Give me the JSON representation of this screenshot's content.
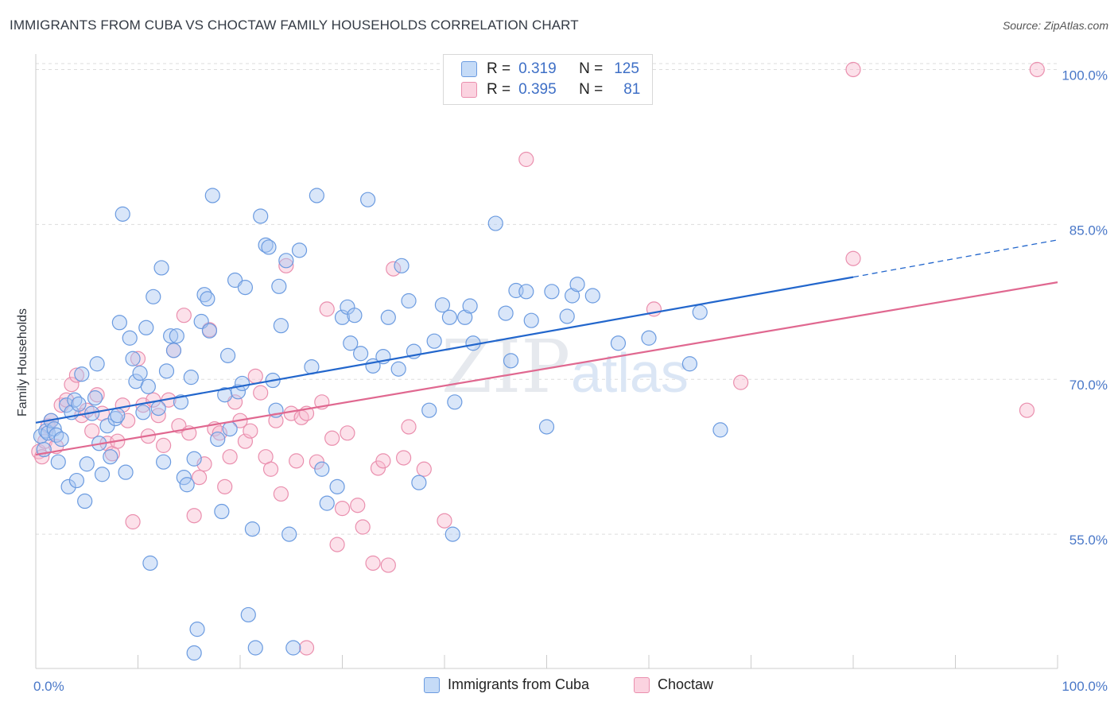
{
  "title": "IMMIGRANTS FROM CUBA VS CHOCTAW FAMILY HOUSEHOLDS CORRELATION CHART",
  "source": "Source: ZipAtlas.com",
  "colors": {
    "blue_fill": "#aac8f2",
    "blue_stroke": "#6b9be0",
    "blue_line": "#2266cc",
    "pink_fill": "#f8bcd0",
    "pink_stroke": "#ea8fae",
    "pink_line": "#e06890",
    "tick_text": "#4a78c8",
    "grid": "#dddddd",
    "watermark": "#e6e9ee"
  },
  "legend_top": {
    "rows": [
      {
        "series": "blue",
        "r_label": "R =",
        "r_value": "0.319",
        "n_label": "N =",
        "n_value": "125"
      },
      {
        "series": "pink",
        "r_label": "R =",
        "r_value": "0.395",
        "n_label": "N =",
        "n_value": "81"
      }
    ]
  },
  "legend_bottom": {
    "blue": "Immigrants from Cuba",
    "pink": "Choctaw"
  },
  "watermark": {
    "zip": "ZIP",
    "atlas": "atlas"
  },
  "chart_data": {
    "type": "scatter",
    "title": "IMMIGRANTS FROM CUBA VS CHOCTAW FAMILY HOUSEHOLDS CORRELATION CHART",
    "xlabel": "",
    "ylabel": "Family Households",
    "xlim": [
      0,
      100
    ],
    "ylim": [
      42,
      101.5
    ],
    "x_tick_labels": [
      {
        "value": 0,
        "label": "0.0%"
      },
      {
        "value": 100,
        "label": "100.0%"
      }
    ],
    "y_ticks": [
      {
        "value": 55,
        "label": "55.0%"
      },
      {
        "value": 70,
        "label": "70.0%"
      },
      {
        "value": 85,
        "label": "85.0%"
      },
      {
        "value": 100,
        "label": "100.0%"
      }
    ],
    "grid": true,
    "series": [
      {
        "name": "Immigrants from Cuba",
        "color_key": "blue",
        "R": 0.319,
        "N": 125,
        "trend": {
          "x0": 0,
          "y0": 65.8,
          "x1": 80,
          "y1": 79.9,
          "dashed_to_x": 100,
          "dashed_to_y": 83.5
        },
        "points": [
          [
            0.5,
            64.5
          ],
          [
            0.8,
            63.2
          ],
          [
            1.0,
            65.0
          ],
          [
            1.2,
            64.8
          ],
          [
            1.5,
            66.0
          ],
          [
            1.8,
            65.2
          ],
          [
            2.0,
            64.6
          ],
          [
            2.2,
            62.0
          ],
          [
            2.5,
            64.2
          ],
          [
            3.0,
            67.5
          ],
          [
            3.2,
            59.6
          ],
          [
            3.5,
            66.8
          ],
          [
            3.8,
            68.0
          ],
          [
            4.0,
            60.2
          ],
          [
            4.2,
            67.6
          ],
          [
            4.5,
            70.5
          ],
          [
            4.8,
            58.2
          ],
          [
            5.0,
            61.8
          ],
          [
            5.5,
            66.7
          ],
          [
            5.8,
            68.2
          ],
          [
            6.0,
            71.5
          ],
          [
            6.2,
            63.8
          ],
          [
            6.5,
            60.8
          ],
          [
            7.0,
            65.5
          ],
          [
            7.3,
            62.5
          ],
          [
            7.8,
            66.2
          ],
          [
            8.0,
            66.5
          ],
          [
            8.2,
            75.5
          ],
          [
            8.5,
            86.0
          ],
          [
            8.8,
            61.0
          ],
          [
            9.2,
            74.0
          ],
          [
            9.5,
            72.0
          ],
          [
            9.8,
            69.8
          ],
          [
            10.2,
            70.6
          ],
          [
            10.5,
            66.8
          ],
          [
            10.8,
            75.0
          ],
          [
            11.0,
            69.3
          ],
          [
            11.2,
            52.2
          ],
          [
            11.5,
            78.0
          ],
          [
            12.0,
            67.2
          ],
          [
            12.3,
            80.8
          ],
          [
            12.5,
            62.0
          ],
          [
            12.8,
            70.8
          ],
          [
            13.2,
            74.2
          ],
          [
            13.5,
            72.8
          ],
          [
            13.8,
            74.2
          ],
          [
            14.2,
            67.8
          ],
          [
            14.5,
            60.5
          ],
          [
            14.8,
            59.8
          ],
          [
            15.2,
            70.2
          ],
          [
            15.5,
            62.3
          ],
          [
            15.8,
            45.8
          ],
          [
            15.5,
            43.5
          ],
          [
            16.2,
            75.6
          ],
          [
            16.5,
            78.2
          ],
          [
            16.8,
            77.8
          ],
          [
            17.0,
            74.7
          ],
          [
            17.3,
            87.8
          ],
          [
            17.8,
            64.2
          ],
          [
            18.2,
            57.2
          ],
          [
            18.5,
            68.5
          ],
          [
            18.8,
            72.3
          ],
          [
            19.0,
            65.2
          ],
          [
            19.5,
            79.6
          ],
          [
            19.8,
            68.8
          ],
          [
            20.2,
            69.6
          ],
          [
            20.5,
            78.9
          ],
          [
            20.8,
            47.2
          ],
          [
            21.2,
            55.5
          ],
          [
            21.5,
            44.0
          ],
          [
            22.0,
            85.8
          ],
          [
            22.5,
            83.0
          ],
          [
            22.8,
            82.8
          ],
          [
            23.2,
            69.9
          ],
          [
            23.5,
            67.0
          ],
          [
            23.8,
            79.0
          ],
          [
            24.0,
            75.2
          ],
          [
            24.5,
            81.5
          ],
          [
            24.8,
            55.0
          ],
          [
            25.2,
            44.0
          ],
          [
            25.8,
            82.5
          ],
          [
            27.0,
            71.2
          ],
          [
            27.5,
            87.8
          ],
          [
            28.0,
            61.3
          ],
          [
            28.5,
            58.0
          ],
          [
            29.5,
            59.6
          ],
          [
            30.0,
            76.0
          ],
          [
            30.5,
            77.0
          ],
          [
            30.8,
            73.5
          ],
          [
            31.2,
            76.2
          ],
          [
            31.8,
            72.5
          ],
          [
            32.5,
            87.4
          ],
          [
            33.0,
            71.3
          ],
          [
            34.0,
            72.2
          ],
          [
            34.5,
            76.0
          ],
          [
            35.5,
            71.0
          ],
          [
            35.8,
            81.0
          ],
          [
            36.5,
            77.6
          ],
          [
            37.0,
            72.7
          ],
          [
            37.5,
            60.0
          ],
          [
            38.5,
            67.0
          ],
          [
            39.0,
            73.7
          ],
          [
            39.8,
            77.2
          ],
          [
            40.5,
            76.0
          ],
          [
            40.8,
            55.0
          ],
          [
            41.0,
            67.8
          ],
          [
            42.0,
            76.0
          ],
          [
            42.5,
            77.1
          ],
          [
            42.8,
            73.5
          ],
          [
            45.0,
            85.1
          ],
          [
            46.0,
            76.4
          ],
          [
            46.5,
            71.8
          ],
          [
            47.0,
            78.6
          ],
          [
            48.0,
            78.5
          ],
          [
            48.5,
            75.7
          ],
          [
            50.0,
            65.4
          ],
          [
            50.5,
            78.5
          ],
          [
            52.0,
            76.1
          ],
          [
            52.5,
            78.1
          ],
          [
            53.0,
            79.2
          ],
          [
            54.5,
            78.1
          ],
          [
            57.0,
            73.5
          ],
          [
            60.0,
            74.0
          ],
          [
            64.0,
            71.5
          ],
          [
            65.0,
            76.5
          ],
          [
            67.0,
            65.1
          ]
        ]
      },
      {
        "name": "Choctaw",
        "color_key": "pink",
        "R": 0.395,
        "N": 81,
        "trend": {
          "x0": 0,
          "y0": 62.7,
          "x1": 100,
          "y1": 79.4
        },
        "points": [
          [
            0.3,
            63.0
          ],
          [
            0.6,
            62.5
          ],
          [
            0.9,
            64.0
          ],
          [
            1.2,
            65.5
          ],
          [
            1.5,
            66.0
          ],
          [
            2.0,
            63.5
          ],
          [
            2.5,
            67.5
          ],
          [
            3.0,
            68.0
          ],
          [
            3.5,
            69.5
          ],
          [
            4.0,
            70.4
          ],
          [
            4.5,
            66.5
          ],
          [
            5.0,
            67.0
          ],
          [
            5.5,
            65.0
          ],
          [
            6.0,
            68.5
          ],
          [
            6.5,
            66.7
          ],
          [
            7.0,
            63.8
          ],
          [
            7.5,
            62.8
          ],
          [
            8.0,
            64.0
          ],
          [
            8.5,
            67.5
          ],
          [
            9.0,
            66.0
          ],
          [
            9.5,
            56.2
          ],
          [
            10.0,
            72.0
          ],
          [
            10.5,
            67.5
          ],
          [
            11.0,
            64.5
          ],
          [
            11.5,
            68.0
          ],
          [
            12.0,
            66.5
          ],
          [
            12.5,
            63.6
          ],
          [
            13.0,
            68.0
          ],
          [
            13.5,
            72.8
          ],
          [
            14.0,
            65.5
          ],
          [
            14.5,
            76.2
          ],
          [
            15.0,
            64.8
          ],
          [
            15.5,
            56.8
          ],
          [
            16.0,
            60.5
          ],
          [
            16.5,
            61.8
          ],
          [
            17.0,
            74.8
          ],
          [
            17.5,
            65.2
          ],
          [
            18.0,
            64.8
          ],
          [
            18.5,
            59.6
          ],
          [
            19.0,
            62.5
          ],
          [
            19.5,
            67.8
          ],
          [
            20.0,
            66.0
          ],
          [
            20.5,
            64.0
          ],
          [
            21.0,
            65.0
          ],
          [
            21.5,
            70.3
          ],
          [
            22.0,
            68.7
          ],
          [
            22.5,
            62.5
          ],
          [
            23.0,
            61.3
          ],
          [
            23.5,
            66.0
          ],
          [
            24.0,
            58.9
          ],
          [
            24.5,
            81.0
          ],
          [
            25.0,
            66.7
          ],
          [
            25.5,
            62.1
          ],
          [
            26.0,
            66.3
          ],
          [
            26.5,
            66.7
          ],
          [
            27.5,
            62.0
          ],
          [
            28.0,
            67.8
          ],
          [
            28.5,
            76.8
          ],
          [
            29.0,
            64.3
          ],
          [
            29.5,
            54.0
          ],
          [
            30.0,
            57.5
          ],
          [
            30.5,
            64.8
          ],
          [
            31.5,
            57.8
          ],
          [
            32.0,
            55.7
          ],
          [
            33.0,
            52.2
          ],
          [
            33.5,
            61.4
          ],
          [
            34.0,
            62.1
          ],
          [
            34.5,
            52.0
          ],
          [
            35.0,
            80.7
          ],
          [
            36.0,
            62.4
          ],
          [
            36.5,
            65.4
          ],
          [
            38.0,
            61.3
          ],
          [
            40.0,
            56.3
          ],
          [
            48.0,
            91.3
          ],
          [
            60.5,
            76.8
          ],
          [
            69.0,
            69.7
          ],
          [
            80.0,
            81.7
          ],
          [
            80.0,
            100.0
          ],
          [
            97.0,
            67.0
          ],
          [
            98.0,
            100.0
          ],
          [
            26.5,
            44.0
          ]
        ]
      }
    ]
  }
}
